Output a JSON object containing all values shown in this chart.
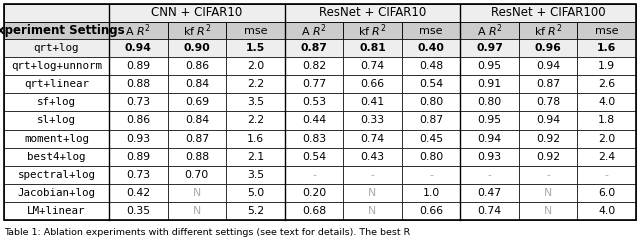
{
  "col_groups": [
    {
      "label": "CNN + CIFAR10"
    },
    {
      "label": "ResNet + CIFAR10"
    },
    {
      "label": "ResNet + CIFAR100"
    }
  ],
  "rows": [
    {
      "name": "qrt+log",
      "values": [
        "0.94",
        "0.90",
        "1.5",
        "0.87",
        "0.81",
        "0.40",
        "0.97",
        "0.96",
        "1.6"
      ],
      "bold": true
    },
    {
      "name": "qrt+log+unnorm",
      "values": [
        "0.89",
        "0.86",
        "2.0",
        "0.82",
        "0.74",
        "0.48",
        "0.95",
        "0.94",
        "1.9"
      ],
      "bold": false
    },
    {
      "name": "qrt+linear",
      "values": [
        "0.88",
        "0.84",
        "2.2",
        "0.77",
        "0.66",
        "0.54",
        "0.91",
        "0.87",
        "2.6"
      ],
      "bold": false
    },
    {
      "name": "sf+log",
      "values": [
        "0.73",
        "0.69",
        "3.5",
        "0.53",
        "0.41",
        "0.80",
        "0.80",
        "0.78",
        "4.0"
      ],
      "bold": false
    },
    {
      "name": "sl+log",
      "values": [
        "0.86",
        "0.84",
        "2.2",
        "0.44",
        "0.33",
        "0.87",
        "0.95",
        "0.94",
        "1.8"
      ],
      "bold": false
    },
    {
      "name": "moment+log",
      "values": [
        "0.93",
        "0.87",
        "1.6",
        "0.83",
        "0.74",
        "0.45",
        "0.94",
        "0.92",
        "2.0"
      ],
      "bold": false
    },
    {
      "name": "best4+log",
      "values": [
        "0.89",
        "0.88",
        "2.1",
        "0.54",
        "0.43",
        "0.80",
        "0.93",
        "0.92",
        "2.4"
      ],
      "bold": false
    },
    {
      "name": "spectral+log",
      "values": [
        "0.73",
        "0.70",
        "3.5",
        "-",
        "-",
        "-",
        "-",
        "-",
        "-"
      ],
      "bold": false
    },
    {
      "name": "Jacobian+log",
      "values": [
        "0.42",
        "N",
        "5.0",
        "0.20",
        "N",
        "1.0",
        "0.47",
        "N",
        "6.0"
      ],
      "bold": false
    },
    {
      "name": "LM+linear",
      "values": [
        "0.35",
        "N",
        "5.2",
        "0.68",
        "N",
        "0.66",
        "0.74",
        "N",
        "4.0"
      ],
      "bold": false
    }
  ],
  "sub_headers": [
    "A $R^2$",
    "kf $R^2$",
    "mse",
    "A $R^2$",
    "kf $R^2$",
    "mse",
    "A $R^2$",
    "kf $R^2$",
    "mse"
  ],
  "bg_top_left_empty": "#eeeeee",
  "bg_group_header": "#eeeeee",
  "bg_subheader": "#cccccc",
  "bg_bold_row": "#eeeeee",
  "bg_normal_row": "#ffffff",
  "color_neutral": "#aaaaaa",
  "fs_group": 8.5,
  "fs_subheader": 8.0,
  "fs_data": 7.8,
  "fs_expset": 8.5,
  "fs_caption": 6.8,
  "caption": "Table 1: Ablation experiments with different settings (see text for details). The best R"
}
